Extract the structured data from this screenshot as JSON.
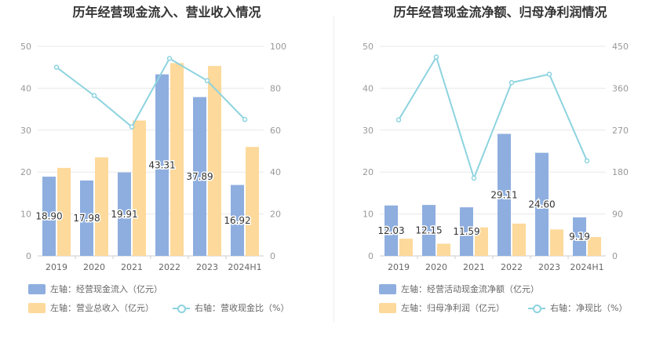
{
  "chart_data": [
    {
      "type": "bar",
      "title": "历年经营现金流入、营业收入情况",
      "categories": [
        "2019",
        "2020",
        "2021",
        "2022",
        "2023",
        "2024H1"
      ],
      "y_left": {
        "range": [
          0,
          50
        ],
        "ticks": [
          "0",
          "10",
          "20",
          "30",
          "40",
          "50"
        ]
      },
      "y_right": {
        "range": [
          0,
          100
        ],
        "ticks": [
          "0",
          "20",
          "40",
          "60",
          "80",
          "100"
        ]
      },
      "series": [
        {
          "name": "左轴：经营现金流入（亿元）",
          "kind": "bar",
          "axis": "left",
          "color": "#8eaedf",
          "values": [
            18.9,
            17.98,
            19.91,
            43.31,
            37.89,
            16.92
          ],
          "labels": [
            "18.90",
            "17.98",
            "19.91",
            "43.31",
            "37.89",
            "16.92"
          ]
        },
        {
          "name": "左轴：营业总收入（亿元）",
          "kind": "bar",
          "axis": "left",
          "color": "#fdd99b",
          "values": [
            21.0,
            23.5,
            32.3,
            46.0,
            45.3,
            26.0
          ]
        },
        {
          "name": "右轴：营收现金比（%）",
          "kind": "line",
          "axis": "right",
          "color": "#8dd3df",
          "values": [
            90.0,
            76.5,
            61.6,
            94.2,
            83.6,
            65.1
          ]
        }
      ]
    },
    {
      "type": "bar",
      "title": "历年经营现金流净额、归母净利润情况",
      "categories": [
        "2019",
        "2020",
        "2021",
        "2022",
        "2023",
        "2024H1"
      ],
      "y_left": {
        "range": [
          0,
          50
        ],
        "ticks": [
          "0",
          "10",
          "20",
          "30",
          "40",
          "50"
        ]
      },
      "y_right": {
        "range": [
          0,
          450
        ],
        "ticks": [
          "0",
          "90",
          "180",
          "270",
          "360",
          "450"
        ]
      },
      "series": [
        {
          "name": "左轴：经营活动现金流净额（亿元）",
          "kind": "bar",
          "axis": "left",
          "color": "#8eaedf",
          "values": [
            12.03,
            12.15,
            11.59,
            29.11,
            24.6,
            9.19
          ],
          "labels": [
            "12.03",
            "12.15",
            "11.59",
            "29.11",
            "24.60",
            "9.19"
          ]
        },
        {
          "name": "左轴：归母净利润（亿元）",
          "kind": "bar",
          "axis": "left",
          "color": "#fdd99b",
          "values": [
            4.1,
            2.9,
            6.8,
            7.7,
            6.3,
            4.5
          ]
        },
        {
          "name": "右轴：净现比（%）",
          "kind": "line",
          "axis": "right",
          "color": "#8dd3df",
          "values": [
            292,
            427,
            167,
            372,
            390,
            204
          ]
        }
      ]
    }
  ]
}
